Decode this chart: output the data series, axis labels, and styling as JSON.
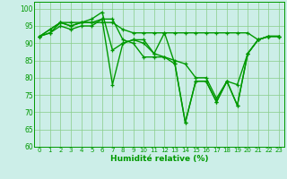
{
  "series": [
    [
      92,
      94,
      96,
      95,
      96,
      97,
      99,
      88,
      90,
      91,
      90,
      87,
      93,
      84,
      67,
      79,
      79,
      73,
      79,
      72,
      87,
      91,
      92,
      92
    ],
    [
      92,
      93,
      96,
      96,
      96,
      96,
      97,
      78,
      90,
      91,
      91,
      87,
      86,
      84,
      67,
      79,
      79,
      73,
      79,
      72,
      87,
      91,
      92,
      92
    ],
    [
      92,
      93,
      95,
      94,
      95,
      95,
      97,
      97,
      91,
      90,
      86,
      86,
      86,
      85,
      84,
      80,
      80,
      74,
      79,
      78,
      87,
      91,
      92,
      92
    ],
    [
      92,
      94,
      96,
      95,
      96,
      96,
      96,
      96,
      94,
      93,
      93,
      93,
      93,
      93,
      93,
      93,
      93,
      93,
      93,
      93,
      93,
      91,
      92,
      92
    ]
  ],
  "xlabel": "Humidité relative (%)",
  "ylim": [
    60,
    102
  ],
  "xlim": [
    -0.5,
    23.5
  ],
  "yticks": [
    60,
    65,
    70,
    75,
    80,
    85,
    90,
    95,
    100
  ],
  "xticks": [
    0,
    1,
    2,
    3,
    4,
    5,
    6,
    7,
    8,
    9,
    10,
    11,
    12,
    13,
    14,
    15,
    16,
    17,
    18,
    19,
    20,
    21,
    22,
    23
  ],
  "bg_color": "#cceee8",
  "grid_color": "#88cc88",
  "line_color": "#009900",
  "marker_size": 3,
  "line_width": 1.0
}
